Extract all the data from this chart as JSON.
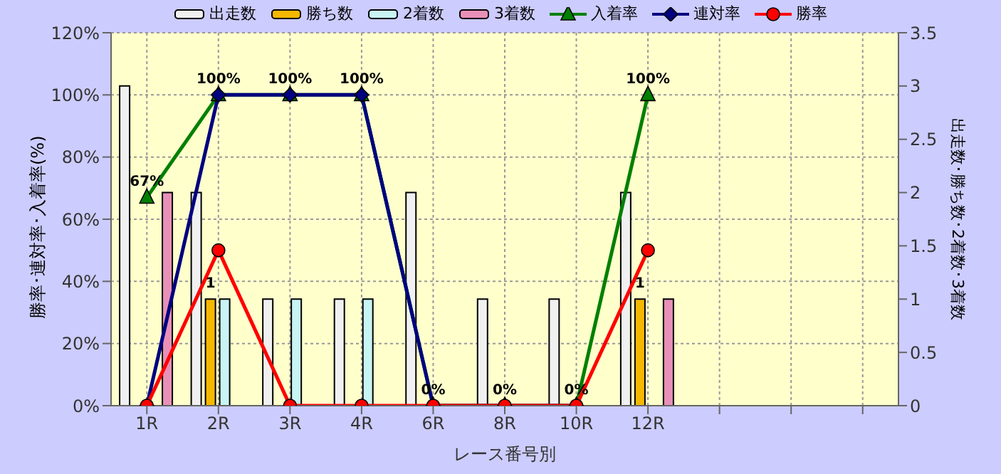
{
  "chart_data": {
    "type": "bar",
    "xlabel": "レース番号別",
    "ylabel": "勝率･連対率･入着率(%)",
    "y2label": "出走数･勝ち数･2着数･3着数",
    "categories": [
      "1R",
      "2R",
      "3R",
      "4R",
      "6R",
      "8R",
      "10R",
      "12R",
      null,
      null,
      null
    ],
    "series": [
      {
        "name": "出走数",
        "axis": "y2",
        "color": "#f0f0f0",
        "values": [
          3,
          2,
          1,
          1,
          2,
          1,
          1,
          2,
          null,
          null,
          null
        ]
      },
      {
        "name": "勝ち数",
        "axis": "y2",
        "color": "#f5b800",
        "values": [
          0,
          1,
          0,
          0,
          0,
          0,
          0,
          1,
          null,
          null,
          null
        ],
        "value_labels": [
          null,
          "1",
          null,
          null,
          null,
          null,
          null,
          "1",
          null,
          null,
          null
        ]
      },
      {
        "name": "2着数",
        "axis": "y2",
        "color": "#c8f4f4",
        "values": [
          0,
          1,
          1,
          1,
          0,
          0,
          0,
          0,
          null,
          null,
          null
        ]
      },
      {
        "name": "3着数",
        "axis": "y2",
        "color": "#e890b8",
        "values": [
          2,
          0,
          0,
          0,
          0,
          0,
          0,
          1,
          null,
          null,
          null
        ]
      },
      {
        "name": "入着率",
        "type": "line",
        "axis": "y",
        "color": "#008000",
        "marker": "triangle",
        "values": [
          67,
          100,
          100,
          100,
          0,
          0,
          0,
          100,
          null,
          null,
          null
        ],
        "value_labels": [
          "67%",
          "100%",
          "100%",
          "100%",
          "0%",
          "0%",
          "0%",
          "100%",
          null,
          null,
          null
        ]
      },
      {
        "name": "連対率",
        "type": "line",
        "axis": "y",
        "color": "#000080",
        "marker": "diamond",
        "values": [
          0,
          100,
          100,
          100,
          0,
          0,
          0,
          null,
          null,
          null,
          null
        ]
      },
      {
        "name": "勝率",
        "type": "line",
        "axis": "y",
        "color": "#ff0000",
        "marker": "circle",
        "values": [
          0,
          50,
          0,
          0,
          0,
          0,
          0,
          50,
          null,
          null,
          null
        ]
      }
    ],
    "ylim": [
      0,
      120
    ],
    "yticks": [
      {
        "value": 0,
        "label": "0%"
      },
      {
        "value": 20,
        "label": "20%"
      },
      {
        "value": 40,
        "label": "40%"
      },
      {
        "value": 60,
        "label": "60%"
      },
      {
        "value": 80,
        "label": "80%"
      },
      {
        "value": 100,
        "label": "100%"
      },
      {
        "value": 120,
        "label": "120%"
      }
    ],
    "y2lim": [
      0,
      3.5
    ],
    "y2ticks": [
      0,
      0.5,
      1,
      1.5,
      2,
      2.5,
      3,
      3.5
    ],
    "grid": true,
    "legend": "top"
  }
}
